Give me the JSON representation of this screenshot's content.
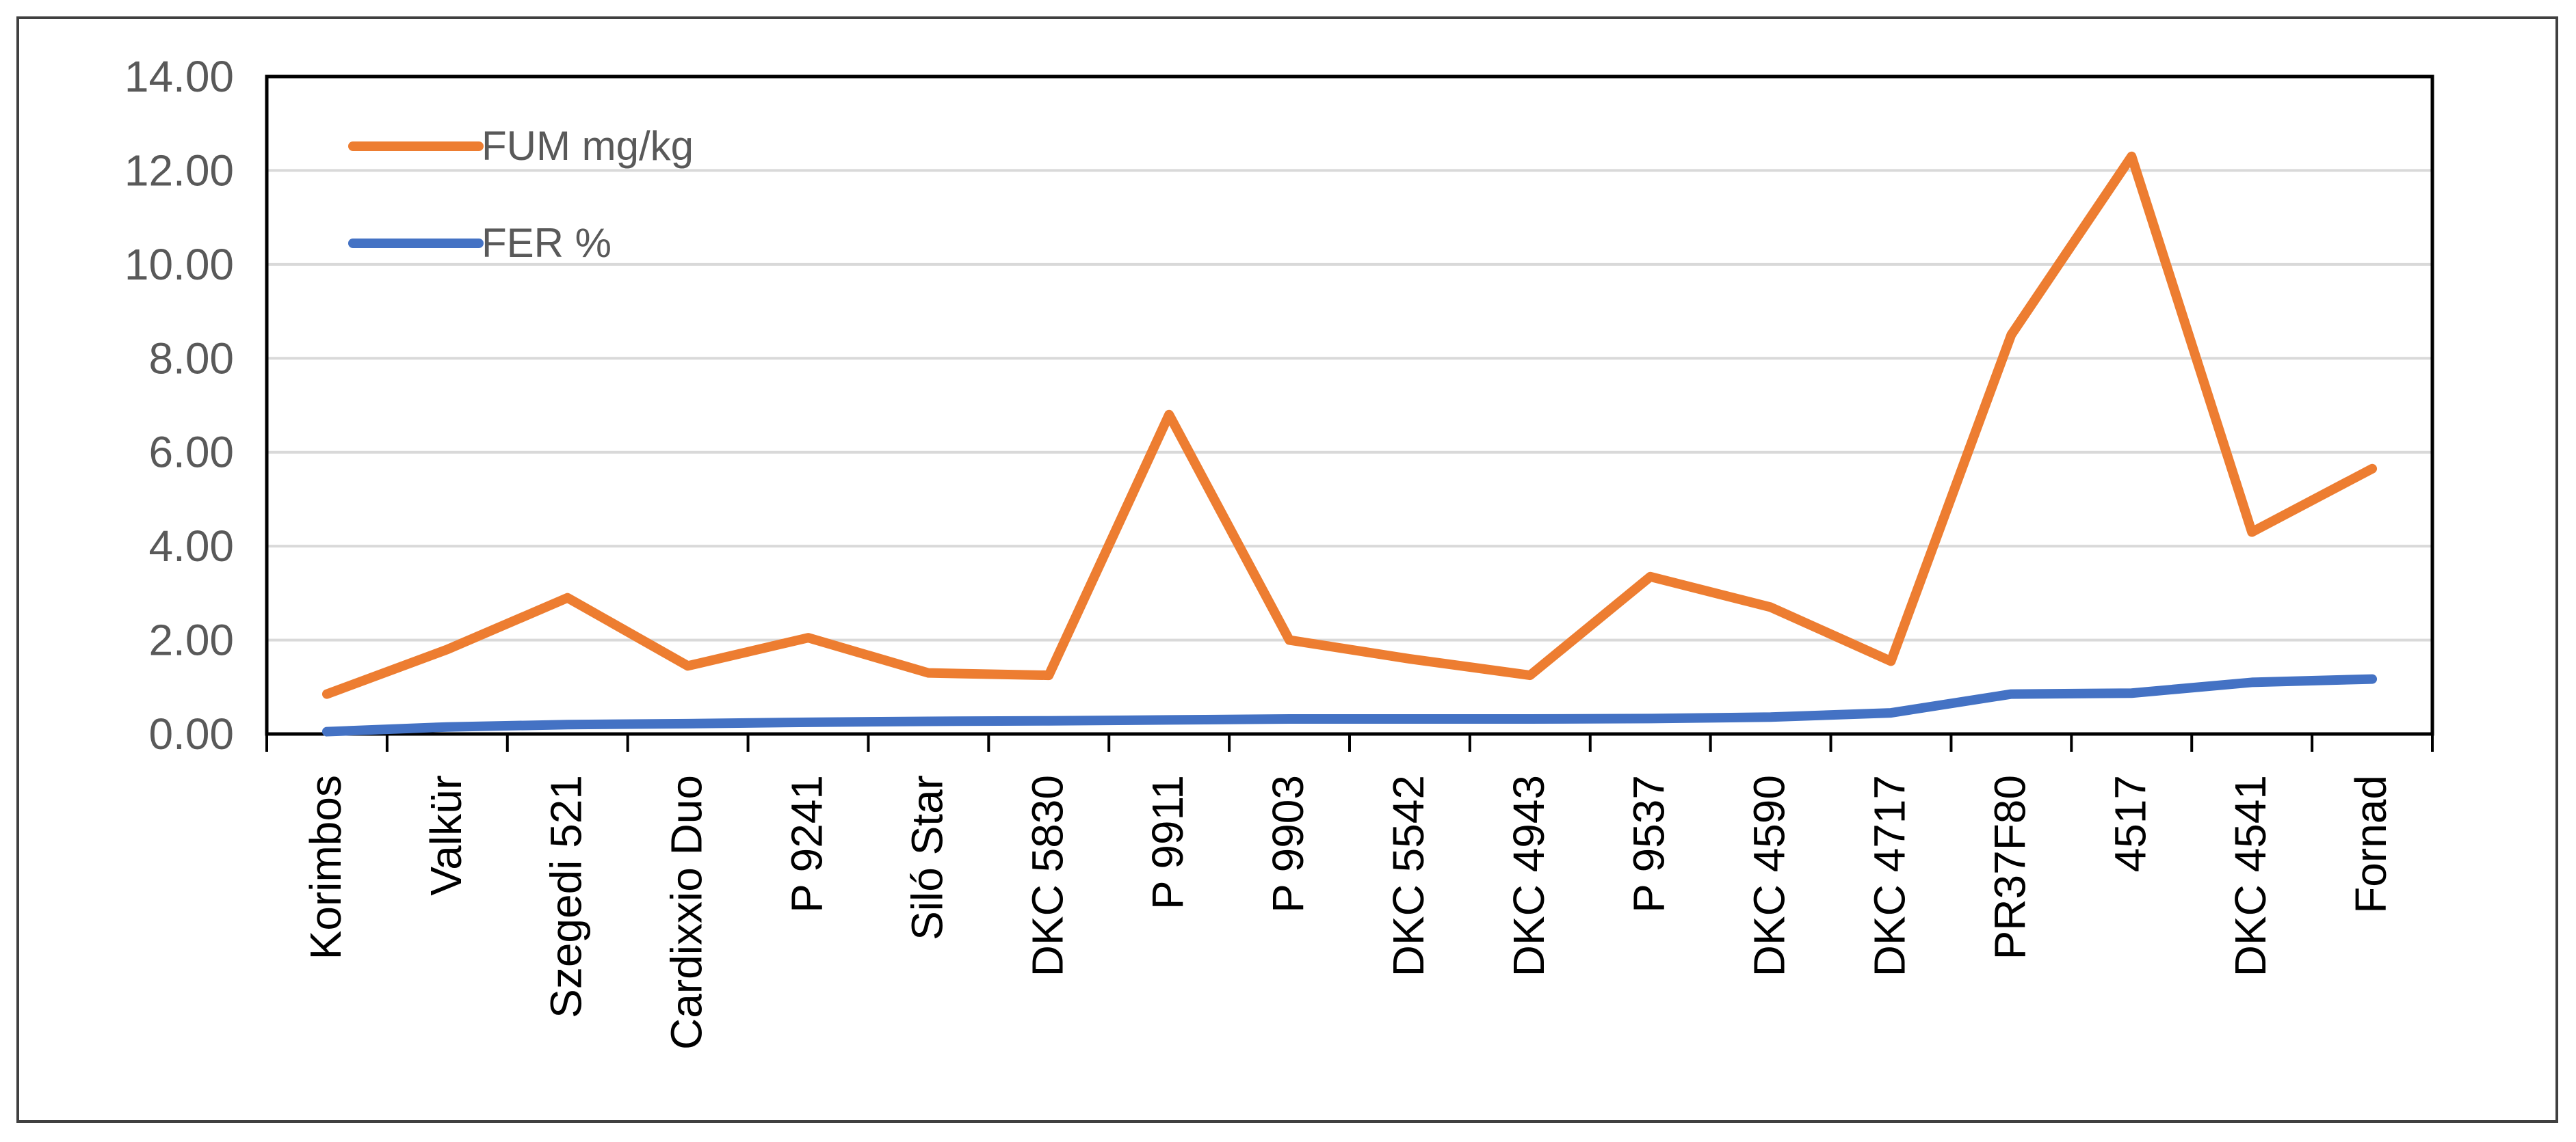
{
  "chart_data": {
    "type": "line",
    "title": "",
    "xlabel": "",
    "ylabel": "",
    "ylim": [
      0,
      14
    ],
    "yticks": [
      "0.00",
      "2.00",
      "4.00",
      "6.00",
      "8.00",
      "10.00",
      "12.00",
      "14.00"
    ],
    "grid": "horizontal",
    "legend_position": "top-left",
    "categories": [
      "Korimbos",
      "Valkür",
      "Szegedi 521",
      "Cardixxio Duo",
      "P 9241",
      "Siló Star",
      "DKC 5830",
      "P 9911",
      "P 9903",
      "DKC 5542",
      "DKC 4943",
      "P 9537",
      "DKC 4590",
      "DKC 4717",
      "PR37F80",
      "4517",
      "DKC 4541",
      "Fornad"
    ],
    "series": [
      {
        "name": "FUM  mg/kg",
        "color": "#ED7D31",
        "values": [
          0.85,
          1.8,
          2.9,
          1.45,
          2.05,
          1.3,
          1.25,
          6.8,
          2.0,
          1.6,
          1.25,
          3.35,
          2.7,
          1.55,
          8.5,
          12.3,
          4.3,
          5.65
        ]
      },
      {
        "name": "FER %",
        "color": "#4472C4",
        "values": [
          0.05,
          0.15,
          0.2,
          0.22,
          0.25,
          0.27,
          0.28,
          0.3,
          0.32,
          0.32,
          0.32,
          0.33,
          0.36,
          0.45,
          0.85,
          0.87,
          1.1,
          1.17
        ]
      }
    ]
  }
}
